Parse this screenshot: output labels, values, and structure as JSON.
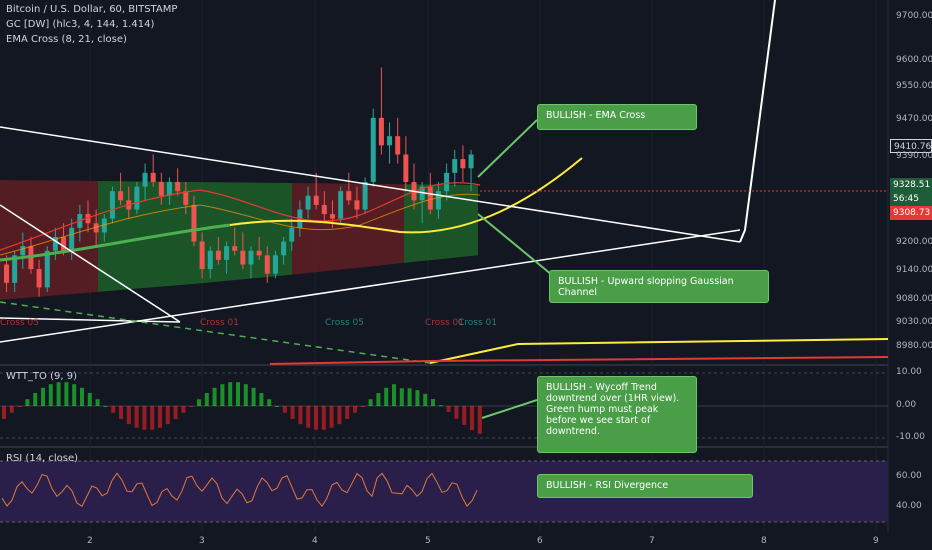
{
  "legend": {
    "symbol": "Bitcoin / U.S. Dollar, 60, BITSTAMP",
    "indicator1": "GC [DW] (hlc3, 4, 144, 1.414)",
    "indicator2": "EMA Cross (8, 21, close)",
    "wtt": "WTT_TO (9, 9)",
    "rsi": "RSI (14, close)"
  },
  "callouts": {
    "ema": "BULLISH - EMA Cross",
    "gaussian": "BULLISH - Upward slopping Gaussian Channel",
    "wycoff": "BULLISH - Wycoff Trend downtrend over (1HR view). Green hump must peak before we see start of downtrend.",
    "rsi": "BULLISH - RSI Divergence"
  },
  "price_tags": {
    "last": "9410.76",
    "current": "9328.51",
    "countdown": "56:45",
    "red": "9308.73"
  },
  "price_axis": [
    "9700.00",
    "9600.00",
    "9550.00",
    "9470.00",
    "9390.00",
    "9200.00",
    "9140.00",
    "9080.00",
    "9030.00",
    "8980.00"
  ],
  "wtt_axis": [
    "10.00",
    "0.00",
    "-10.00"
  ],
  "rsi_axis": [
    "60.00",
    "40.00"
  ],
  "time_axis": [
    "2",
    "3",
    "4",
    "5",
    "6",
    "7",
    "8",
    "9"
  ],
  "cross_labels": [
    "Cross 05",
    "Cross 01",
    "Cross 05",
    "Cross 01",
    "Cross 01"
  ],
  "colors": {
    "background": "#131722",
    "bull_candle": "#26a69a",
    "bear_candle": "#ef5350",
    "callout_bg": "#4a9e48",
    "gauss_green": "#1f6b2a",
    "gauss_red": "#6b1f24",
    "rsi_band": "#2a1f4a"
  },
  "chart_data": {
    "type": "candlestick",
    "y_range_main": [
      8960,
      9730
    ],
    "candles": [
      [
        9160,
        9180,
        9100,
        9120
      ],
      [
        9120,
        9190,
        9100,
        9180
      ],
      [
        9180,
        9230,
        9150,
        9200
      ],
      [
        9200,
        9220,
        9140,
        9150
      ],
      [
        9150,
        9170,
        9090,
        9110
      ],
      [
        9110,
        9200,
        9100,
        9190
      ],
      [
        9190,
        9240,
        9170,
        9220
      ],
      [
        9220,
        9250,
        9180,
        9190
      ],
      [
        9190,
        9260,
        9170,
        9240
      ],
      [
        9240,
        9290,
        9210,
        9270
      ],
      [
        9270,
        9300,
        9230,
        9250
      ],
      [
        9250,
        9280,
        9200,
        9230
      ],
      [
        9230,
        9270,
        9210,
        9260
      ],
      [
        9260,
        9330,
        9250,
        9320
      ],
      [
        9320,
        9360,
        9290,
        9300
      ],
      [
        9300,
        9330,
        9260,
        9280
      ],
      [
        9280,
        9340,
        9270,
        9330
      ],
      [
        9330,
        9380,
        9300,
        9360
      ],
      [
        9360,
        9400,
        9330,
        9340
      ],
      [
        9340,
        9360,
        9290,
        9310
      ],
      [
        9310,
        9350,
        9290,
        9340
      ],
      [
        9340,
        9370,
        9310,
        9320
      ],
      [
        9320,
        9340,
        9270,
        9290
      ],
      [
        9290,
        9310,
        9200,
        9210
      ],
      [
        9210,
        9230,
        9130,
        9150
      ],
      [
        9150,
        9200,
        9130,
        9190
      ],
      [
        9190,
        9220,
        9160,
        9170
      ],
      [
        9170,
        9210,
        9140,
        9200
      ],
      [
        9200,
        9240,
        9180,
        9190
      ],
      [
        9190,
        9230,
        9150,
        9160
      ],
      [
        9160,
        9200,
        9130,
        9190
      ],
      [
        9190,
        9220,
        9170,
        9180
      ],
      [
        9180,
        9200,
        9120,
        9140
      ],
      [
        9140,
        9190,
        9130,
        9180
      ],
      [
        9180,
        9220,
        9160,
        9210
      ],
      [
        9210,
        9260,
        9190,
        9240
      ],
      [
        9240,
        9300,
        9220,
        9280
      ],
      [
        9280,
        9330,
        9260,
        9310
      ],
      [
        9310,
        9360,
        9280,
        9290
      ],
      [
        9290,
        9320,
        9250,
        9270
      ],
      [
        9270,
        9300,
        9240,
        9260
      ],
      [
        9260,
        9330,
        9250,
        9320
      ],
      [
        9320,
        9360,
        9290,
        9300
      ],
      [
        9300,
        9330,
        9260,
        9280
      ],
      [
        9280,
        9350,
        9270,
        9340
      ],
      [
        9340,
        9500,
        9330,
        9480
      ],
      [
        9480,
        9590,
        9400,
        9420
      ],
      [
        9420,
        9470,
        9380,
        9440
      ],
      [
        9440,
        9480,
        9380,
        9400
      ],
      [
        9400,
        9440,
        9320,
        9340
      ],
      [
        9340,
        9380,
        9280,
        9300
      ],
      [
        9300,
        9340,
        9250,
        9330
      ],
      [
        9330,
        9360,
        9270,
        9280
      ],
      [
        9280,
        9340,
        9260,
        9320
      ],
      [
        9320,
        9380,
        9300,
        9360
      ],
      [
        9360,
        9410,
        9330,
        9390
      ],
      [
        9390,
        9420,
        9340,
        9370
      ],
      [
        9370,
        9410,
        9320,
        9400
      ]
    ]
  }
}
